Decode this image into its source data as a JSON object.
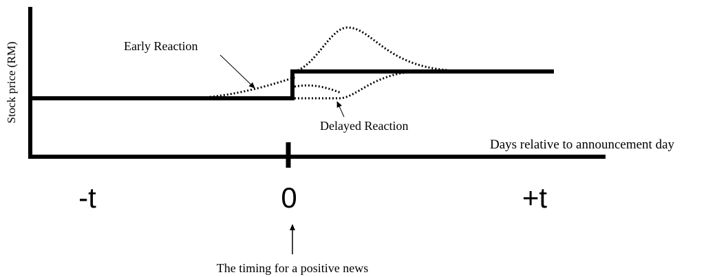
{
  "y_axis_label": "Stock price (RM)",
  "annotations": {
    "early": "Early Reaction",
    "delayed": "Delayed Reaction",
    "timing": "The timing for a positive news"
  },
  "x_axis_label": "Days relative to announcement day",
  "x_labels": [
    "-t",
    "0",
    "+t"
  ]
}
